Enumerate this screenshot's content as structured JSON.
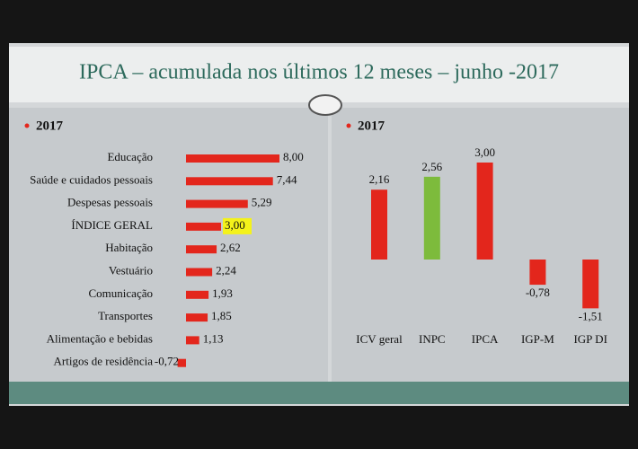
{
  "slide": {
    "title": "IPCA – acumulada nos últimos 12 meses –  junho -2017"
  },
  "chart_data": [
    {
      "type": "hbar",
      "subtitle": "2017",
      "categories": [
        "Educação",
        "Saúde e cuidados pessoais",
        "Despesas pessoais",
        "ÍNDICE GERAL",
        "Habitação",
        "Vestuário",
        "Comunicação",
        "Transportes",
        "Alimentação e bebidas",
        "Artigos de residência"
      ],
      "values": [
        8.0,
        7.44,
        5.29,
        3.0,
        2.62,
        2.24,
        1.93,
        1.85,
        1.13,
        -0.72
      ],
      "value_labels": [
        "8,00",
        "7,44",
        "5,29",
        "3,00",
        "2,62",
        "2,24",
        "1,93",
        "1,85",
        "1,13",
        "-0,72"
      ],
      "color": "#e3261c",
      "highlighted": [
        3
      ]
    },
    {
      "type": "bar",
      "subtitle": "2017",
      "categories": [
        "ICV geral",
        "INPC",
        "IPCA",
        "IGP-M",
        "IGP DI"
      ],
      "values": [
        2.16,
        2.56,
        3.0,
        -0.78,
        -1.51
      ],
      "value_labels": [
        "2,16",
        "2,56",
        "3,00",
        "-0,78",
        "-1,51"
      ],
      "colors": [
        "#e3261c",
        "#7dbb3c",
        "#e3261c",
        "#e3261c",
        "#e3261c"
      ]
    }
  ]
}
